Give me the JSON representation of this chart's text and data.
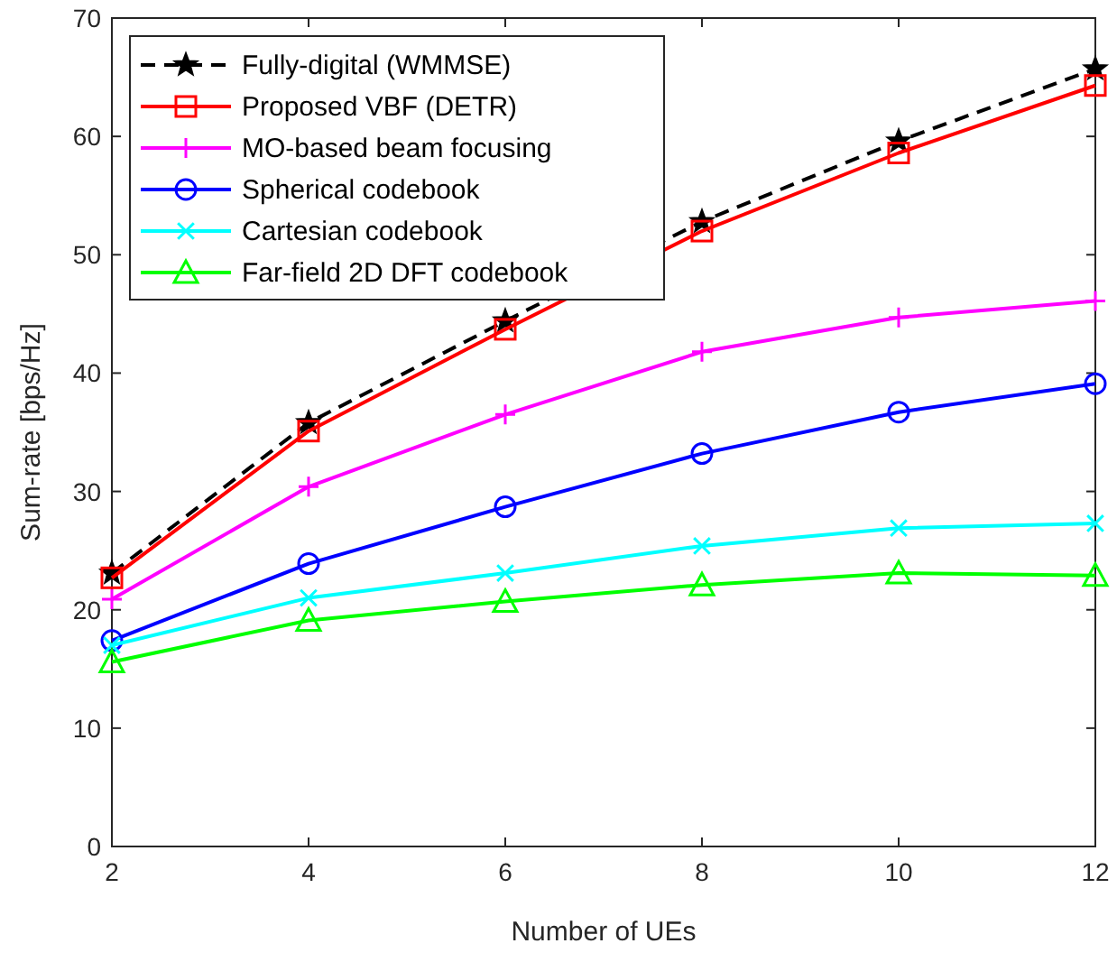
{
  "chart_data": {
    "type": "line",
    "xlabel": "Number of UEs",
    "ylabel": "Sum-rate [bps/Hz]",
    "x": [
      2,
      4,
      6,
      8,
      10,
      12
    ],
    "xlim": [
      2,
      12
    ],
    "xticks": [
      2,
      4,
      6,
      8,
      10,
      12
    ],
    "ylim": [
      0,
      70
    ],
    "yticks": [
      0,
      10,
      20,
      30,
      40,
      50,
      60,
      70
    ],
    "grid": false,
    "legend": "top left",
    "series": [
      {
        "name": "Fully-digital (WMMSE)",
        "color": "#000000",
        "marker": "star",
        "line_style": "dashed",
        "values": [
          23.1,
          35.8,
          44.4,
          52.8,
          59.6,
          65.7
        ]
      },
      {
        "name": "Proposed VBF (DETR)",
        "color": "#ff0000",
        "marker": "square",
        "line_style": "solid",
        "values": [
          22.7,
          35.1,
          43.7,
          52.0,
          58.6,
          64.3
        ]
      },
      {
        "name": "MO-based beam focusing",
        "color": "#ff00ff",
        "marker": "plus",
        "line_style": "solid",
        "values": [
          20.9,
          30.4,
          36.5,
          41.8,
          44.7,
          46.1
        ]
      },
      {
        "name": "Spherical codebook",
        "color": "#0000ff",
        "marker": "circle",
        "line_style": "solid",
        "values": [
          17.4,
          23.9,
          28.7,
          33.2,
          36.7,
          39.1
        ]
      },
      {
        "name": "Cartesian codebook",
        "color": "#00ffff",
        "marker": "cross",
        "line_style": "solid",
        "values": [
          17.0,
          21.0,
          23.1,
          25.4,
          26.9,
          27.3
        ]
      },
      {
        "name": "Far-field 2D DFT codebook",
        "color": "#00ff00",
        "marker": "triangle",
        "line_style": "solid",
        "values": [
          15.6,
          19.1,
          20.7,
          22.1,
          23.1,
          22.9
        ]
      }
    ]
  }
}
